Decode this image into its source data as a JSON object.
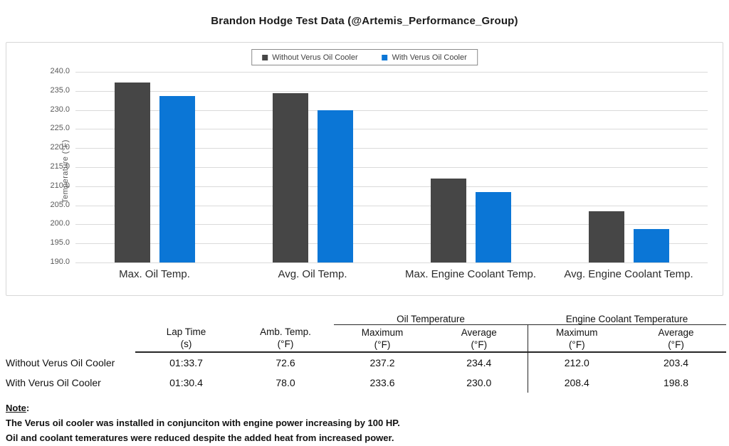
{
  "page_title": "Brandon Hodge Test Data (@Artemis_Performance_Group)",
  "colors": {
    "series_without": "#464646",
    "series_with": "#0b76d6",
    "gridline": "#dadada",
    "axis_text": "#595959"
  },
  "chart_data": {
    "type": "bar",
    "title": "Brandon Hodge Test Data (@Artemis_Performance_Group)",
    "categories": [
      "Max. Oil Temp.",
      "Avg. Oil Temp.",
      "Max. Engine Coolant Temp.",
      "Avg. Engine Coolant Temp."
    ],
    "series": [
      {
        "name": "Without Verus Oil Cooler",
        "color": "#464646",
        "values": [
          237.2,
          234.4,
          212.0,
          203.4
        ]
      },
      {
        "name": "With Verus Oil Cooler",
        "color": "#0b76d6",
        "values": [
          233.6,
          230.0,
          208.4,
          198.8
        ]
      }
    ],
    "xlabel": "",
    "ylabel": "Temperature (°F)",
    "ylim": [
      190.0,
      240.0
    ],
    "ytick_step": 5.0,
    "ytick_format_decimals": 1,
    "grid": true,
    "legend_position": "top-center"
  },
  "table": {
    "spanners": [
      {
        "label": "",
        "span": 3
      },
      {
        "label": "Oil Temperature",
        "span": 2
      },
      {
        "label": "Engine Coolant Temperature",
        "span": 2
      }
    ],
    "columns": [
      {
        "label": "Lap Time",
        "unit": "(s)"
      },
      {
        "label": "Amb. Temp.",
        "unit": "(°F)"
      },
      {
        "label": "Maximum",
        "unit": "(°F)"
      },
      {
        "label": "Average",
        "unit": "(°F)"
      },
      {
        "label": "Maximum",
        "unit": "(°F)"
      },
      {
        "label": "Average",
        "unit": "(°F)"
      }
    ],
    "rows": [
      {
        "label": "Without Verus Oil Cooler",
        "values": [
          "01:33.7",
          "72.6",
          "237.2",
          "234.4",
          "212.0",
          "203.4"
        ]
      },
      {
        "label": "With Verus Oil Cooler",
        "values": [
          "01:30.4",
          "78.0",
          "233.6",
          "230.0",
          "208.4",
          "198.8"
        ]
      }
    ]
  },
  "note": {
    "heading": "Note",
    "colon": ":",
    "lines": [
      "The Verus oil cooler was installed in conjunciton with engine power increasing by 100 HP.",
      "Oil and coolant temeratures were reduced despite the added heat from increased power."
    ]
  }
}
